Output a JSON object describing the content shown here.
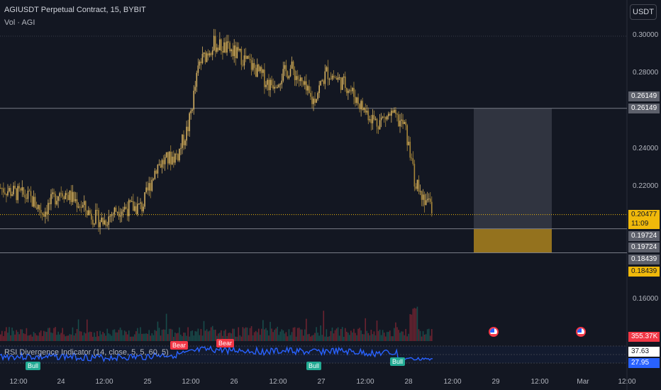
{
  "header": {
    "title": "AGIUSDT Perpetual Contract, 15, BYBIT",
    "subtitle": "Vol · AGI"
  },
  "currency_button": "USDT",
  "rsi_indicator": {
    "title": "RSI Divergence Indicator (14, close, 5, 5, 60, 5)",
    "value_upper": "37.63",
    "value_lower": "27.95",
    "signals": [
      {
        "label": "Bull",
        "type": "bull"
      },
      {
        "label": "Bear",
        "type": "bear"
      },
      {
        "label": "Bear",
        "type": "bear"
      },
      {
        "label": "Bull",
        "type": "bull"
      },
      {
        "label": "Bull",
        "type": "bull"
      }
    ]
  },
  "volume_label": "355.37K",
  "price_axis": {
    "ticks": [
      "0.30000",
      "0.28000",
      "0.24000",
      "0.22000",
      "0.16000"
    ],
    "labels": {
      "line1_a": "0.26149",
      "line1_b": "0.26149",
      "current": "0.20477",
      "countdown": "11:09",
      "line2_a": "0.19724",
      "line2_b": "0.19724",
      "line3_a": "0.18439",
      "line3_b": "0.18439"
    }
  },
  "time_axis": {
    "labels": [
      "12:00",
      "24",
      "12:00",
      "25",
      "12:00",
      "26",
      "12:00",
      "27",
      "12:00",
      "28",
      "12:00",
      "29",
      "12:00",
      "Mar",
      "12:00"
    ]
  },
  "colors": {
    "background": "#131722",
    "candle": "#c9a44a",
    "rsi_line": "#2962ff",
    "bull": "#22ab94",
    "bear": "#f23645",
    "short_target": "#b58a1e",
    "stop_zone": "#363a45"
  },
  "chart_data": {
    "type": "candlestick",
    "ylim": [
      0.15,
      0.305
    ],
    "horizontal_levels": [
      0.26149,
      0.19724,
      0.18439
    ],
    "current_price": 0.20477,
    "close_path": [
      {
        "x": 0,
        "y": 0.219
      },
      {
        "x": 0.04,
        "y": 0.214
      },
      {
        "x": 0.06,
        "y": 0.206
      },
      {
        "x": 0.085,
        "y": 0.218
      },
      {
        "x": 0.11,
        "y": 0.211
      },
      {
        "x": 0.13,
        "y": 0.204
      },
      {
        "x": 0.145,
        "y": 0.201
      },
      {
        "x": 0.165,
        "y": 0.208
      },
      {
        "x": 0.2,
        "y": 0.209
      },
      {
        "x": 0.22,
        "y": 0.231
      },
      {
        "x": 0.25,
        "y": 0.237
      },
      {
        "x": 0.265,
        "y": 0.252
      },
      {
        "x": 0.28,
        "y": 0.285
      },
      {
        "x": 0.3,
        "y": 0.296
      },
      {
        "x": 0.32,
        "y": 0.293
      },
      {
        "x": 0.34,
        "y": 0.289
      },
      {
        "x": 0.36,
        "y": 0.282
      },
      {
        "x": 0.38,
        "y": 0.274
      },
      {
        "x": 0.41,
        "y": 0.283
      },
      {
        "x": 0.44,
        "y": 0.265
      },
      {
        "x": 0.46,
        "y": 0.281
      },
      {
        "x": 0.49,
        "y": 0.273
      },
      {
        "x": 0.51,
        "y": 0.262
      },
      {
        "x": 0.53,
        "y": 0.254
      },
      {
        "x": 0.55,
        "y": 0.258
      },
      {
        "x": 0.57,
        "y": 0.252
      },
      {
        "x": 0.585,
        "y": 0.221
      },
      {
        "x": 0.6,
        "y": 0.213
      },
      {
        "x": 0.61,
        "y": 0.205
      }
    ]
  }
}
